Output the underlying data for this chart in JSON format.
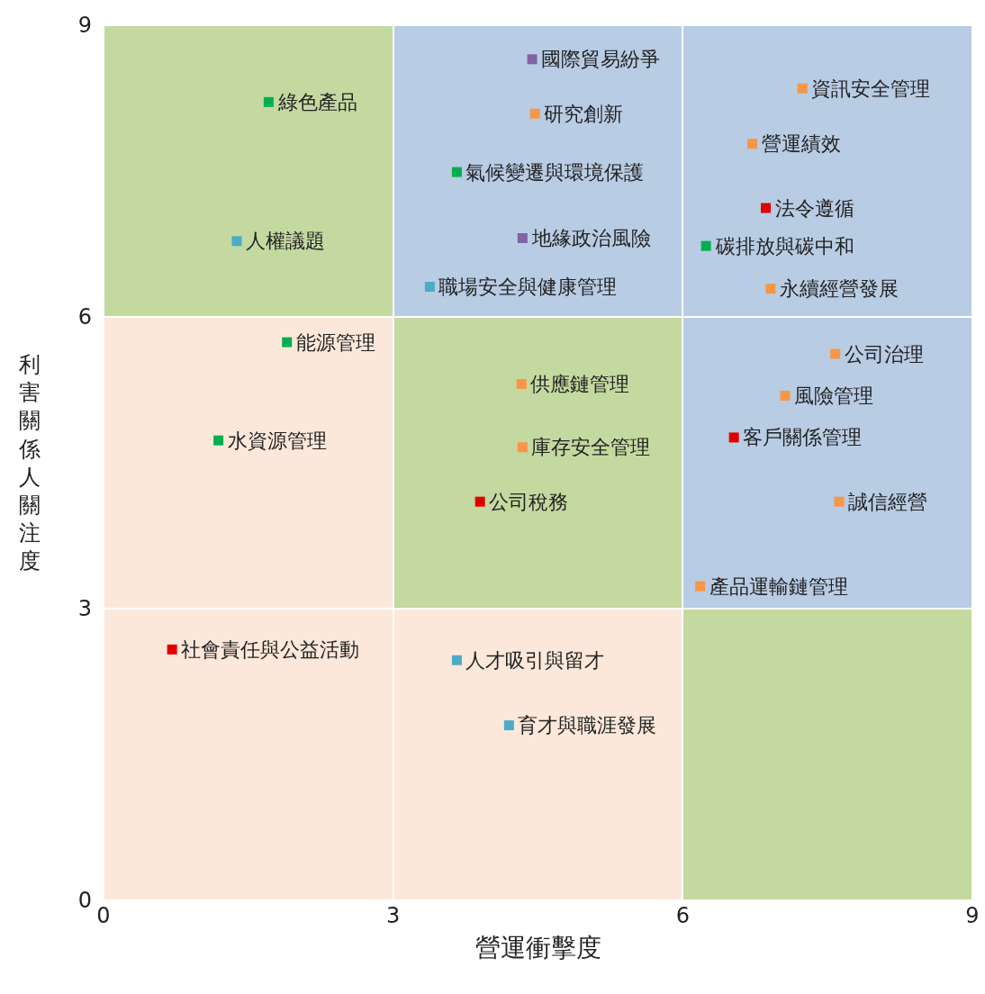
{
  "chart_data": {
    "type": "scatter",
    "xlabel": "營運衝擊度",
    "ylabel": "利害關係人關注度",
    "xlim": [
      0,
      9
    ],
    "ylim": [
      0,
      9
    ],
    "xticks": [
      0,
      3,
      6,
      9
    ],
    "yticks": [
      0,
      3,
      6,
      9
    ],
    "grid": false,
    "marker": "square",
    "series": [
      {
        "color": "#00b050",
        "x": [
          1.71,
          1.9,
          1.19,
          3.66,
          6.24
        ],
        "values": [
          8.21,
          5.74,
          4.73,
          7.49,
          6.73
        ]
      },
      {
        "color": "#4bacc6",
        "x": [
          1.38,
          3.38,
          3.66,
          4.2
        ],
        "values": [
          6.78,
          6.31,
          2.47,
          1.8
        ]
      },
      {
        "color": "#8064a2",
        "x": [
          4.44,
          4.34
        ],
        "values": [
          8.65,
          6.81
        ]
      },
      {
        "color": "#f79646",
        "x": [
          4.47,
          7.24,
          6.72,
          6.91,
          7.58,
          7.06,
          7.62,
          6.18,
          4.33,
          4.34
        ],
        "values": [
          8.09,
          8.35,
          7.78,
          6.29,
          5.62,
          5.19,
          4.1,
          3.23,
          5.31,
          4.66
        ]
      },
      {
        "color": "#e00000",
        "x": [
          0.71,
          6.86,
          6.53,
          3.9
        ],
        "values": [
          2.58,
          7.12,
          4.76,
          4.1
        ]
      }
    ],
    "annotations": [
      {
        "text": "綠色產品",
        "x": 1.71,
        "y": 8.21
      },
      {
        "text": "人權議題",
        "x": 1.38,
        "y": 6.78
      },
      {
        "text": "能源管理",
        "x": 1.9,
        "y": 5.74
      },
      {
        "text": "水資源管理",
        "x": 1.19,
        "y": 4.73
      },
      {
        "text": "社會責任與公益活動",
        "x": 0.71,
        "y": 2.58
      },
      {
        "text": "國際貿易紛爭",
        "x": 4.44,
        "y": 8.65
      },
      {
        "text": "研究創新",
        "x": 4.47,
        "y": 8.09
      },
      {
        "text": "氣候變遷與環境保護",
        "x": 3.66,
        "y": 7.49
      },
      {
        "text": "地緣政治風險",
        "x": 4.34,
        "y": 6.81
      },
      {
        "text": "職場安全與健康管理",
        "x": 3.38,
        "y": 6.31
      },
      {
        "text": "資訊安全管理",
        "x": 7.24,
        "y": 8.35
      },
      {
        "text": "營運績效",
        "x": 6.72,
        "y": 7.78
      },
      {
        "text": "法令遵循",
        "x": 6.86,
        "y": 7.12
      },
      {
        "text": "碳排放與碳中和",
        "x": 6.24,
        "y": 6.73
      },
      {
        "text": "永續經營發展",
        "x": 6.91,
        "y": 6.29
      },
      {
        "text": "公司治理",
        "x": 7.58,
        "y": 5.62
      },
      {
        "text": "風險管理",
        "x": 7.06,
        "y": 5.19
      },
      {
        "text": "客戶關係管理",
        "x": 6.53,
        "y": 4.76
      },
      {
        "text": "誠信經營",
        "x": 7.62,
        "y": 4.1
      },
      {
        "text": "產品運輸鏈管理",
        "x": 6.18,
        "y": 3.23
      },
      {
        "text": "供應鏈管理",
        "x": 4.33,
        "y": 5.31
      },
      {
        "text": "庫存安全管理",
        "x": 4.34,
        "y": 4.66
      },
      {
        "text": "公司稅務",
        "x": 3.9,
        "y": 4.1
      },
      {
        "text": "人才吸引與留才",
        "x": 3.66,
        "y": 2.47
      },
      {
        "text": "育才與職涯發展",
        "x": 4.2,
        "y": 1.8
      }
    ]
  }
}
